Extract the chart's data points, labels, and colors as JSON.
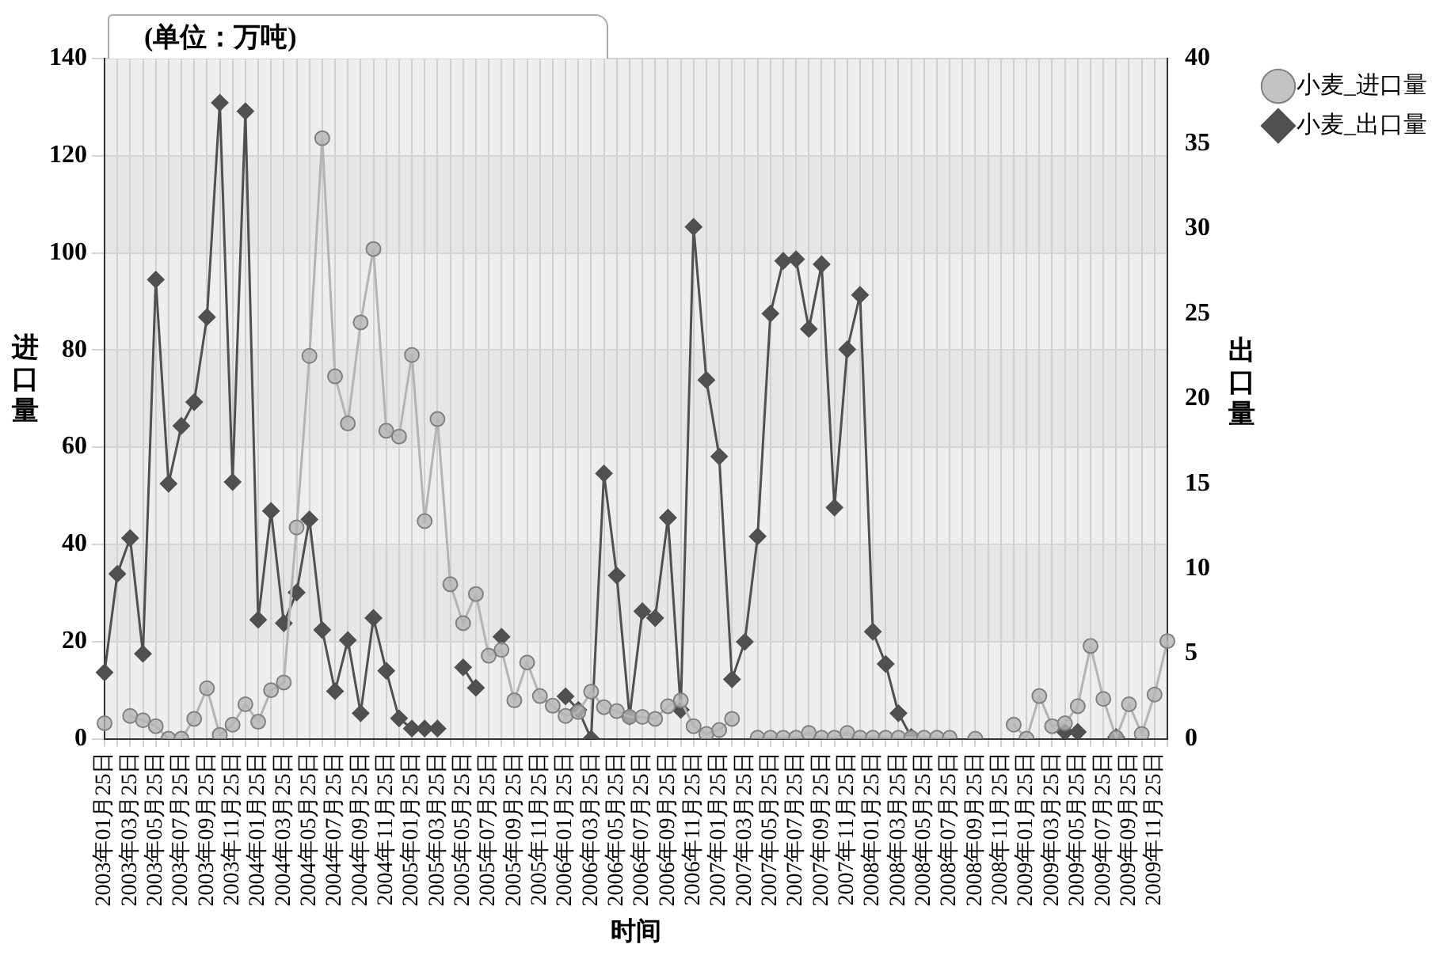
{
  "chart_data": {
    "type": "line",
    "title": "(单位：万吨)",
    "xlabel": "时间",
    "ylabel": "进口量",
    "y2label": "出口量",
    "categories": [
      "2003年01月25日",
      null,
      "2003年03月25日",
      null,
      "2003年05月25日",
      null,
      "2003年07月25日",
      null,
      "2003年09月25日",
      null,
      "2003年11月25日",
      null,
      "2004年01月25日",
      null,
      "2004年03月25日",
      null,
      "2004年05月25日",
      null,
      "2004年07月25日",
      null,
      "2004年09月25日",
      null,
      "2004年11月25日",
      null,
      "2005年01月25日",
      null,
      "2005年03月25日",
      null,
      "2005年05月25日",
      null,
      "2005年07月25日",
      null,
      "2005年09月25日",
      null,
      "2005年11月25日",
      null,
      "2006年01月25日",
      null,
      "2006年03月25日",
      null,
      "2006年05月25日",
      null,
      "2006年07月25日",
      null,
      "2006年09月25日",
      null,
      "2006年11月25日",
      null,
      "2007年01月25日",
      null,
      "2007年03月25日",
      null,
      "2007年05月25日",
      null,
      "2007年07月25日",
      null,
      "2007年09月25日",
      null,
      "2007年11月25日",
      null,
      "2008年01月25日",
      null,
      "2008年03月25日",
      null,
      "2008年05月25日",
      null,
      "2008年07月25日",
      null,
      "2008年09月25日",
      null,
      "2008年11月25日",
      null,
      "2009年01月25日",
      null,
      "2009年03月25日",
      null,
      "2009年05月25日",
      null,
      "2009年07月25日",
      null,
      "2009年09月25日",
      null,
      "2009年11月25日",
      null
    ],
    "series": [
      {
        "name": "小麦_进口量",
        "color": "#b4b4b4",
        "marker": "circle",
        "values": [
          3.2,
          null,
          4.7,
          3.8,
          2.6,
          0,
          0,
          4.1,
          10.4,
          0.8,
          2.9,
          7.1,
          3.5,
          10.0,
          11.6,
          43.5,
          78.8,
          123.6,
          74.6,
          64.9,
          85.7,
          100.8,
          63.4,
          62.2,
          79.0,
          44.8,
          65.8,
          31.8,
          23.8,
          29.8,
          17.1,
          18.3,
          7.9,
          15.7,
          8.8,
          6.8,
          4.7,
          5.5,
          9.7,
          6.5,
          5.7,
          4.5,
          4.5,
          4.1,
          6.7,
          7.9,
          2.6,
          1.0,
          1.8,
          4.1,
          null,
          0.2,
          0.2,
          0.2,
          0.2,
          1.2,
          0.2,
          0.2,
          1.2,
          0.2,
          0.2,
          0.2,
          0.2,
          0.2,
          0.2,
          0.2,
          0.2,
          null,
          0,
          null,
          null,
          2.9,
          0,
          8.8,
          2.6,
          3.2,
          6.7,
          19.1,
          8.2,
          0.2,
          7.1,
          1.0,
          9.1,
          20.1
        ]
      },
      {
        "name": "小麦_出口量",
        "color": "#505050",
        "marker": "diamond",
        "axis": "y2",
        "values": [
          3.9,
          9.7,
          11.8,
          5.0,
          27.0,
          15.0,
          18.4,
          19.8,
          24.8,
          37.4,
          15.1,
          36.9,
          7.0,
          13.4,
          6.8,
          8.6,
          12.9,
          6.4,
          2.8,
          5.8,
          1.5,
          7.1,
          4.0,
          1.2,
          0.6,
          0.6,
          0.6,
          null,
          4.2,
          3.0,
          null,
          6.0,
          null,
          null,
          null,
          null,
          2.5,
          1.7,
          0,
          15.6,
          9.6,
          1.3,
          7.5,
          7.1,
          13.0,
          1.7,
          30.1,
          21.1,
          16.6,
          3.5,
          5.7,
          11.9,
          25.0,
          28.1,
          28.2,
          24.1,
          27.9,
          13.6,
          22.9,
          26.1,
          6.3,
          4.4,
          1.5,
          0.1,
          null,
          null,
          null,
          null,
          null,
          null,
          null,
          null,
          null,
          null,
          null,
          0.4,
          0.4,
          null,
          null,
          0.1,
          null,
          null,
          null,
          null
        ]
      }
    ],
    "ylim": [
      0,
      140
    ],
    "yticks": [
      0,
      20,
      40,
      60,
      80,
      100,
      120,
      140
    ],
    "y2lim": [
      0,
      40
    ],
    "y2ticks": [
      0,
      5,
      10,
      15,
      20,
      25,
      30,
      35,
      40
    ],
    "grid": true,
    "legend": "top right"
  }
}
